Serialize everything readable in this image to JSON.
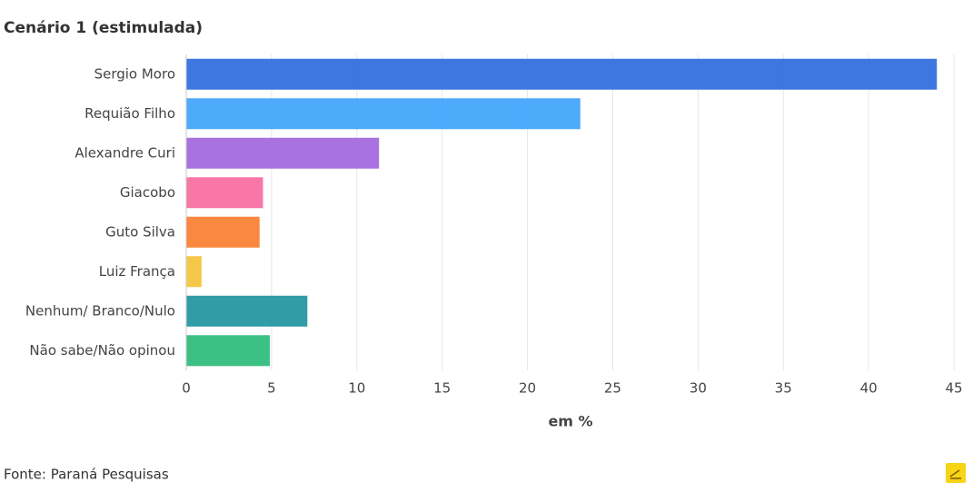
{
  "chart_data": {
    "type": "bar",
    "orientation": "horizontal",
    "title": "Cenário 1 (estimulada)",
    "x_label": "em %",
    "source": "Fonte: Paraná Pesquisas",
    "categories": [
      "Sergio Moro",
      "Requião Filho",
      "Alexandre Curi",
      "Giacobo",
      "Guto Silva",
      "Luiz França",
      "Nenhum/ Branco/Nulo",
      "Não sabe/Não opinou"
    ],
    "values": [
      44,
      23.1,
      11.3,
      4.5,
      4.3,
      0.9,
      7.1,
      4.9
    ],
    "colors": [
      "#2f6bdd",
      "#3fa3fb",
      "#a166de",
      "#f76b9f",
      "#fa7e2f",
      "#f3c43a",
      "#1f949e",
      "#2dbb7a"
    ],
    "xlim": [
      0,
      45
    ],
    "xticks": [
      0,
      5,
      10,
      15,
      20,
      25,
      30,
      35,
      40,
      45
    ],
    "grid": true
  }
}
